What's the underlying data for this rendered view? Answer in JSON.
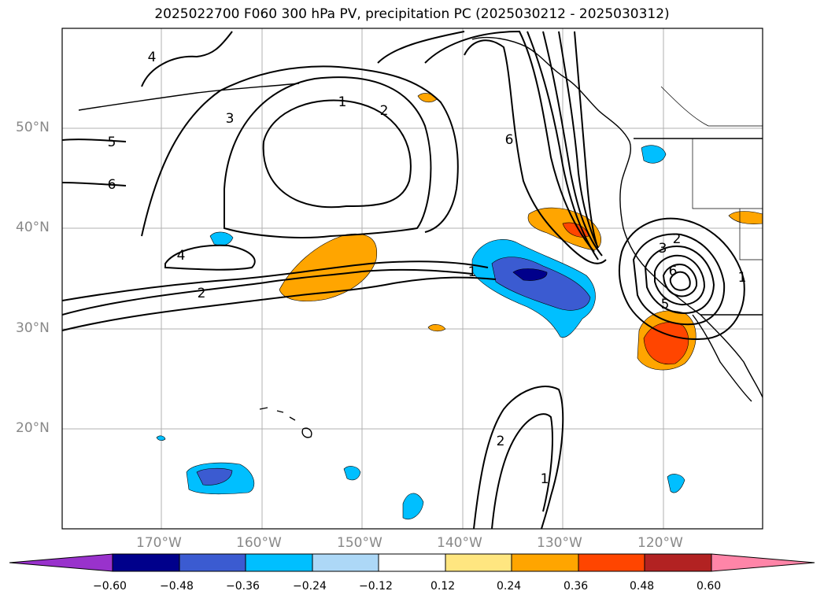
{
  "title": "2025022700 F060 300 hPa PV, precipitation PC (2025030212 - 2025030312)",
  "map": {
    "lat_labels": [
      "50°N",
      "40°N",
      "30°N",
      "20°N"
    ],
    "lon_labels": [
      "170°W",
      "160°W",
      "150°W",
      "140°W",
      "130°W",
      "120°W"
    ],
    "contour_labels": [
      "4",
      "3",
      "1",
      "2",
      "5",
      "6",
      "4",
      "2",
      "6",
      "1",
      "2",
      "3",
      "6",
      "5",
      "1",
      "2",
      "1"
    ],
    "pv_contour_color": "#000000",
    "grid_color": "#b0b0b0"
  },
  "colorbar": {
    "ticks": [
      "−0.60",
      "−0.48",
      "−0.36",
      "−0.24",
      "−0.12",
      "0.12",
      "0.24",
      "0.36",
      "0.48",
      "0.60"
    ],
    "colors": [
      "#9932cc",
      "#00008b",
      "#3b5bd1",
      "#00bfff",
      "#add8f7",
      "#ffffff",
      "#ffe680",
      "#ffa500",
      "#ff4500",
      "#b22222",
      "#ff85a8"
    ]
  }
}
